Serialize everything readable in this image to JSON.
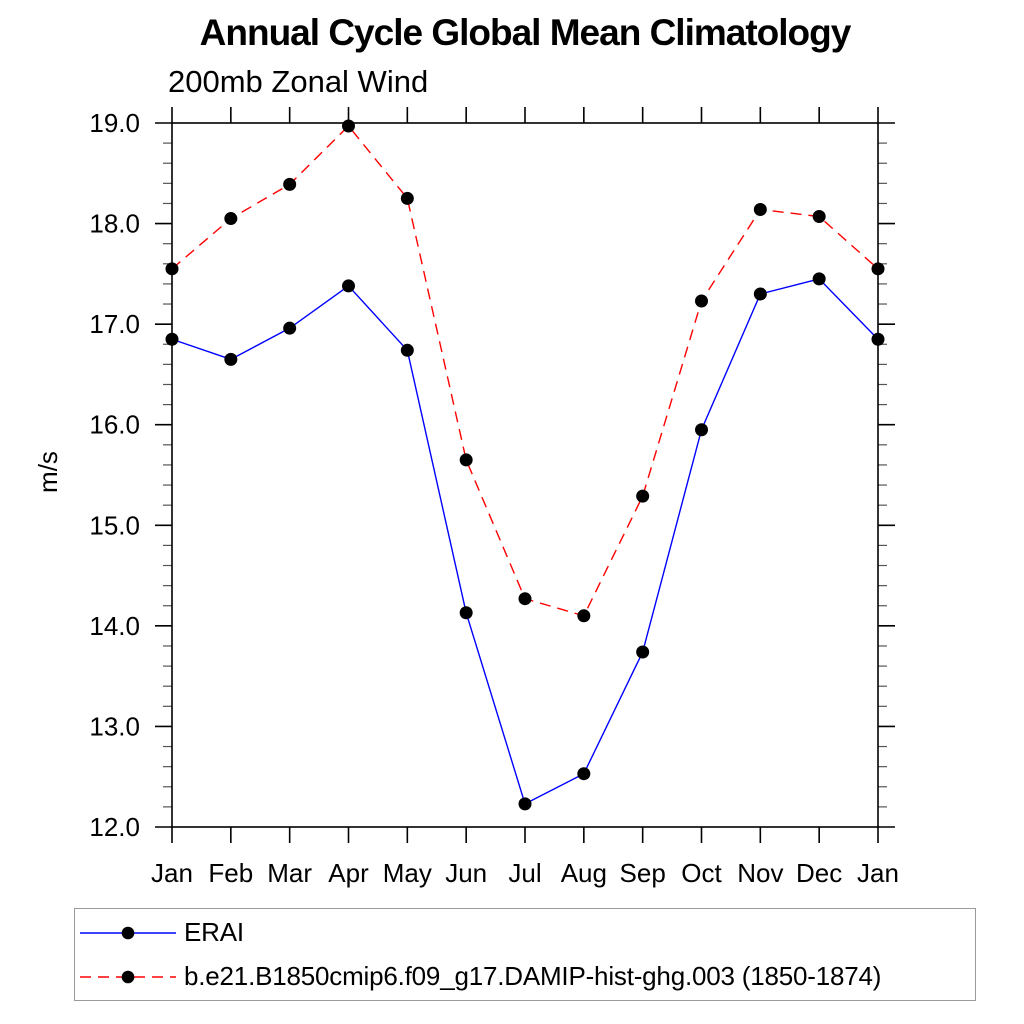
{
  "title": "Annual Cycle Global Mean Climatology",
  "subtitle": "200mb Zonal Wind",
  "colors": {
    "erai_line": "#0000ff",
    "model_line": "#ff0000",
    "marker": "#000000",
    "axis": "#000000",
    "minor_tick": "#555555",
    "legend_border": "#9a9a9a"
  },
  "chart_data": {
    "type": "line",
    "title": "Annual Cycle Global Mean Climatology",
    "subtitle": "200mb Zonal Wind",
    "xlabel": "",
    "ylabel": "m/s",
    "categories": [
      "Jan",
      "Feb",
      "Mar",
      "Apr",
      "May",
      "Jun",
      "Jul",
      "Aug",
      "Sep",
      "Oct",
      "Nov",
      "Dec",
      "Jan"
    ],
    "ylim": [
      12.0,
      19.0
    ],
    "yticks_major": [
      12,
      13,
      14,
      15,
      16,
      17,
      18,
      19
    ],
    "ytick_labels": [
      "12.0",
      "13.0",
      "14.0",
      "15.0",
      "16.0",
      "17.0",
      "18.0",
      "19.0"
    ],
    "y_minor_step": 0.2,
    "grid": false,
    "legend_position": "bottom-left-box",
    "series": [
      {
        "name": "ERAI",
        "color": "#0000ff",
        "style": "solid",
        "marker": "circle",
        "marker_color": "#000000",
        "values": [
          16.85,
          16.65,
          16.96,
          17.38,
          16.74,
          14.13,
          12.23,
          12.53,
          13.74,
          15.95,
          17.3,
          17.45,
          16.85
        ]
      },
      {
        "name": "b.e21.B1850cmip6.f09_g17.DAMIP-hist-ghg.003 (1850-1874)",
        "color": "#ff0000",
        "style": "dashed",
        "marker": "circle",
        "marker_color": "#000000",
        "values": [
          17.55,
          18.05,
          18.39,
          18.97,
          18.25,
          15.65,
          14.27,
          14.1,
          15.29,
          17.23,
          18.14,
          18.07,
          17.55
        ]
      }
    ]
  }
}
